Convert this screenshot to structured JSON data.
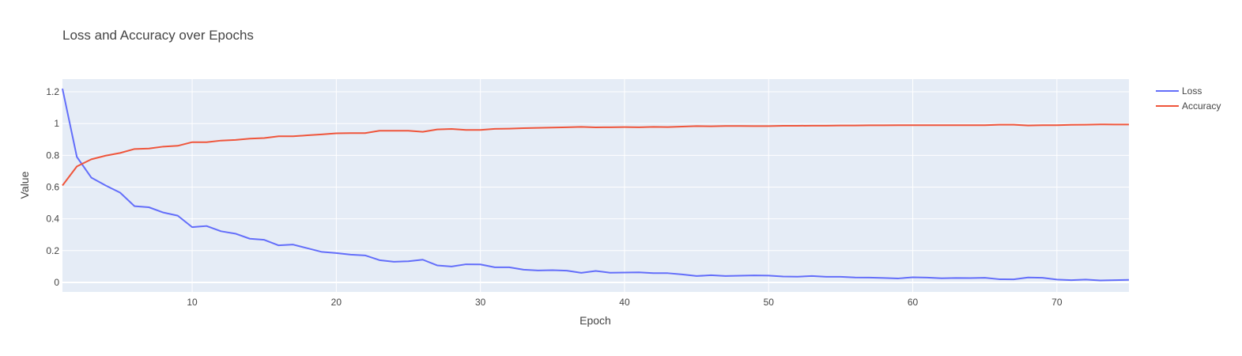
{
  "chart_data": {
    "type": "line",
    "title": "Loss and Accuracy over Epochs",
    "xlabel": "Epoch",
    "ylabel": "Value",
    "xlim": [
      1,
      75
    ],
    "ylim": [
      -0.06,
      1.28
    ],
    "xticks": [
      10,
      20,
      30,
      40,
      50,
      60,
      70
    ],
    "yticks": [
      0,
      0.2,
      0.4,
      0.6,
      0.8,
      1,
      1.2
    ],
    "ytick_labels": [
      "0",
      "0.2",
      "0.4",
      "0.6",
      "0.8",
      "1",
      "1.2"
    ],
    "grid": true,
    "legend_position": "top-right",
    "x": [
      1,
      2,
      3,
      4,
      5,
      6,
      7,
      8,
      9,
      10,
      11,
      12,
      13,
      14,
      15,
      16,
      17,
      18,
      19,
      20,
      21,
      22,
      23,
      24,
      25,
      26,
      27,
      28,
      29,
      30,
      31,
      32,
      33,
      34,
      35,
      36,
      37,
      38,
      39,
      40,
      41,
      42,
      43,
      44,
      45,
      46,
      47,
      48,
      49,
      50,
      51,
      52,
      53,
      54,
      55,
      56,
      57,
      58,
      59,
      60,
      61,
      62,
      63,
      64,
      65,
      66,
      67,
      68,
      69,
      70,
      71,
      72,
      73,
      74,
      75
    ],
    "series": [
      {
        "name": "Loss",
        "color": "#636efa",
        "values": [
          1.22,
          0.79,
          0.66,
          0.61,
          0.565,
          0.48,
          0.473,
          0.44,
          0.42,
          0.348,
          0.355,
          0.322,
          0.307,
          0.275,
          0.268,
          0.233,
          0.238,
          0.215,
          0.192,
          0.185,
          0.175,
          0.17,
          0.14,
          0.13,
          0.133,
          0.143,
          0.107,
          0.1,
          0.114,
          0.113,
          0.095,
          0.095,
          0.08,
          0.075,
          0.077,
          0.074,
          0.06,
          0.072,
          0.061,
          0.062,
          0.063,
          0.058,
          0.058,
          0.05,
          0.04,
          0.045,
          0.04,
          0.042,
          0.044,
          0.043,
          0.037,
          0.036,
          0.04,
          0.035,
          0.035,
          0.031,
          0.03,
          0.028,
          0.025,
          0.032,
          0.03,
          0.026,
          0.028,
          0.027,
          0.029,
          0.02,
          0.019,
          0.031,
          0.029,
          0.018,
          0.014,
          0.018,
          0.012,
          0.014,
          0.016
        ]
      },
      {
        "name": "Accuracy",
        "color": "#ef553b",
        "values": [
          0.61,
          0.73,
          0.775,
          0.798,
          0.815,
          0.84,
          0.843,
          0.855,
          0.86,
          0.883,
          0.883,
          0.893,
          0.897,
          0.905,
          0.909,
          0.92,
          0.92,
          0.926,
          0.932,
          0.939,
          0.94,
          0.94,
          0.955,
          0.955,
          0.955,
          0.948,
          0.963,
          0.966,
          0.96,
          0.96,
          0.967,
          0.968,
          0.971,
          0.973,
          0.975,
          0.977,
          0.979,
          0.976,
          0.977,
          0.978,
          0.977,
          0.979,
          0.978,
          0.981,
          0.984,
          0.983,
          0.985,
          0.985,
          0.984,
          0.984,
          0.986,
          0.986,
          0.987,
          0.987,
          0.988,
          0.988,
          0.989,
          0.989,
          0.99,
          0.99,
          0.99,
          0.99,
          0.99,
          0.99,
          0.99,
          0.993,
          0.993,
          0.988,
          0.99,
          0.99,
          0.992,
          0.993,
          0.995,
          0.994,
          0.994
        ]
      }
    ]
  }
}
